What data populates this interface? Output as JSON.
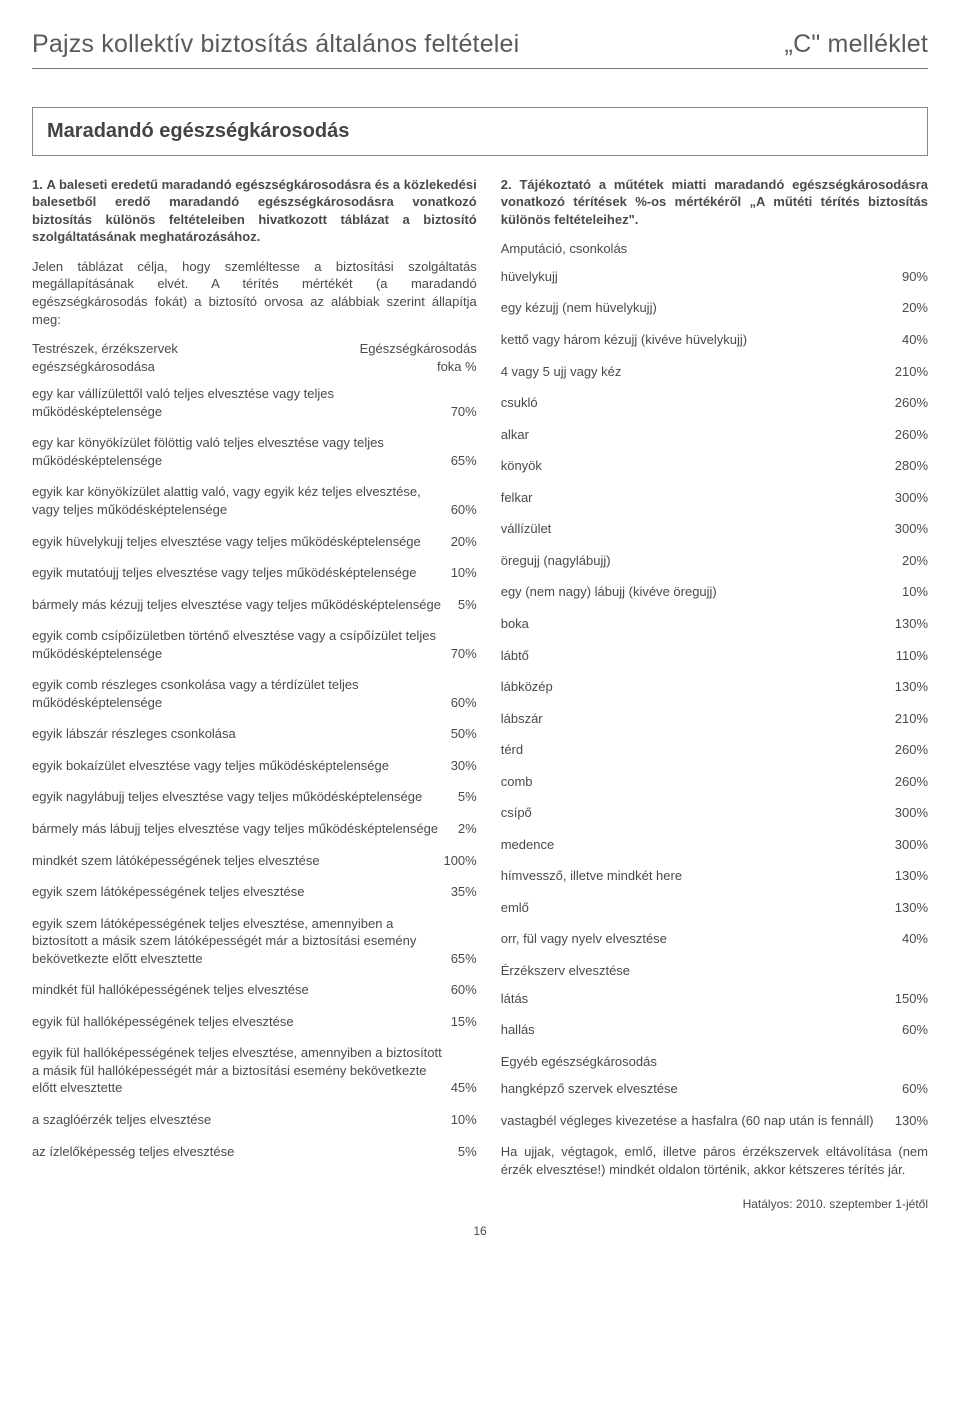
{
  "header": {
    "left": "Pajzs kollektív biztosítás általános feltételei",
    "right": "„C\" melléklet"
  },
  "main_title": "Maradandó egészségkárosodás",
  "left_col": {
    "p1_lead": "1.",
    "p1": "A baleseti eredetű maradandó egészségkárosodásra és a közlekedési balesetből eredő maradandó egészségkárosodásra vonatkozó biztosítás különös feltételeiben hivatkozott táblázat a biztosító szolgáltatásának meghatározásához.",
    "p2": "Jelen táblázat célja, hogy szemléltesse a biztosítási szolgáltatás megállapításának elvét. A térítés mértékét (a maradandó egészségkárosodás fokát) a biztosító orvosa az alábbiak szerint állapítja meg:",
    "table_header": {
      "c1a": "Testrészek, érzékszervek",
      "c1b": "egészségkárosodása",
      "c2a": "Egészségkárosodás",
      "c2b": "foka %"
    },
    "rows": [
      {
        "label": "egy kar vállízülettől való teljes elvesztése vagy teljes működésképtelensége",
        "value": "70%"
      },
      {
        "label": "egy kar könyökízület fölöttig való teljes elvesztése vagy teljes működésképtelensége",
        "value": "65%"
      },
      {
        "label": "egyik kar könyökízület alattig való, vagy egyik kéz teljes elvesztése, vagy teljes működésképtelensége",
        "value": "60%"
      },
      {
        "label": "egyik hüvelykujj teljes elvesztése vagy teljes működésképtelensége",
        "value": "20%"
      },
      {
        "label": "egyik mutatóujj teljes elvesztése vagy teljes működésképtelensége",
        "value": "10%"
      },
      {
        "label": "bármely más kézujj teljes elvesztése vagy teljes működésképtelensége",
        "value": "5%"
      },
      {
        "label": "egyik comb csípőízületben történő elvesztése vagy a csípőízület teljes működésképtelensége",
        "value": "70%"
      },
      {
        "label": "egyik comb részleges csonkolása vagy a térdízület teljes működésképtelensége",
        "value": "60%"
      },
      {
        "label": "egyik lábszár részleges csonkolása",
        "value": "50%"
      },
      {
        "label": "egyik bokaízület elvesztése vagy teljes működésképtelensége",
        "value": "30%"
      },
      {
        "label": "egyik nagylábujj teljes elvesztése vagy teljes működésképtelensége",
        "value": "5%"
      },
      {
        "label": "bármely más lábujj teljes elvesztése vagy teljes működésképtelensége",
        "value": "2%"
      },
      {
        "label": "mindkét szem látóképességének teljes elvesztése",
        "value": "100%"
      },
      {
        "label": "egyik szem látóképességének teljes elvesztése",
        "value": "35%"
      },
      {
        "label": "egyik szem látóképességének teljes elvesztése, amennyiben a biztosított a másik szem látóképességét már a biztosítási esemény bekövetkezte előtt elvesztette",
        "value": "65%"
      },
      {
        "label": "mindkét fül hallóképességének teljes elvesztése",
        "value": "60%"
      },
      {
        "label": "egyik fül hallóképességének teljes elvesztése",
        "value": "15%"
      },
      {
        "label": "egyik fül hallóképességének teljes elvesztése, amennyiben a biztosított a másik fül hallóképességét már a biztosítási esemény bekövetkezte előtt elvesztette",
        "value": "45%"
      },
      {
        "label": "a szaglóérzék teljes elvesztése",
        "value": "10%"
      },
      {
        "label": "az ízlelőképesség teljes elvesztése",
        "value": "5%"
      }
    ]
  },
  "right_col": {
    "p1_lead": "2.",
    "p1": "Tájékoztató a műtétek miatti maradandó egészségkárosodásra vonatkozó térítések %-os mértékéről „A műtéti térítés biztosítás különös feltételeihez\".",
    "section_amp": "Amputáció, csonkolás",
    "amp_rows": [
      {
        "label": "hüvelykujj",
        "value": "90%"
      },
      {
        "label": "egy kézujj (nem hüvelykujj)",
        "value": "20%"
      },
      {
        "label": "kettő vagy három kézujj (kivéve hüvelykujj)",
        "value": "40%"
      },
      {
        "label": "4 vagy 5 ujj vagy kéz",
        "value": "210%"
      },
      {
        "label": "csukló",
        "value": "260%"
      },
      {
        "label": "alkar",
        "value": "260%"
      },
      {
        "label": "könyök",
        "value": "280%"
      },
      {
        "label": "felkar",
        "value": "300%"
      },
      {
        "label": "vállízület",
        "value": "300%"
      },
      {
        "label": "öregujj (nagylábujj)",
        "value": "20%"
      },
      {
        "label": "egy (nem nagy) lábujj (kivéve öregujj)",
        "value": "10%"
      },
      {
        "label": "boka",
        "value": "130%"
      },
      {
        "label": "lábtő",
        "value": "110%"
      },
      {
        "label": "lábközép",
        "value": "130%"
      },
      {
        "label": "lábszár",
        "value": "210%"
      },
      {
        "label": "térd",
        "value": "260%"
      },
      {
        "label": "comb",
        "value": "260%"
      },
      {
        "label": "csípő",
        "value": "300%"
      },
      {
        "label": "medence",
        "value": "300%"
      },
      {
        "label": "hímvessző, illetve mindkét here",
        "value": "130%"
      },
      {
        "label": "emlő",
        "value": "130%"
      },
      {
        "label": "orr, fül vagy nyelv elvesztése",
        "value": "40%"
      }
    ],
    "section_sense": "Érzékszerv elvesztése",
    "sense_rows": [
      {
        "label": "látás",
        "value": "150%"
      },
      {
        "label": "hallás",
        "value": "60%"
      }
    ],
    "section_other": "Egyéb egészségkárosodás",
    "other_rows": [
      {
        "label": "hangképző szervek elvesztése",
        "value": "60%"
      },
      {
        "label": "vastagbél végleges kivezetése a hasfalra (60 nap után is fennáll)",
        "value": "130%"
      }
    ],
    "closing": "Ha ujjak, végtagok, emlő, illetve páros érzékszervek eltávolítása (nem érzék elvesztése!) mindkét oldalon történik, akkor kétszeres térítés jár."
  },
  "footer": "Hatályos: 2010. szeptember 1-jétől",
  "page_num": "16"
}
